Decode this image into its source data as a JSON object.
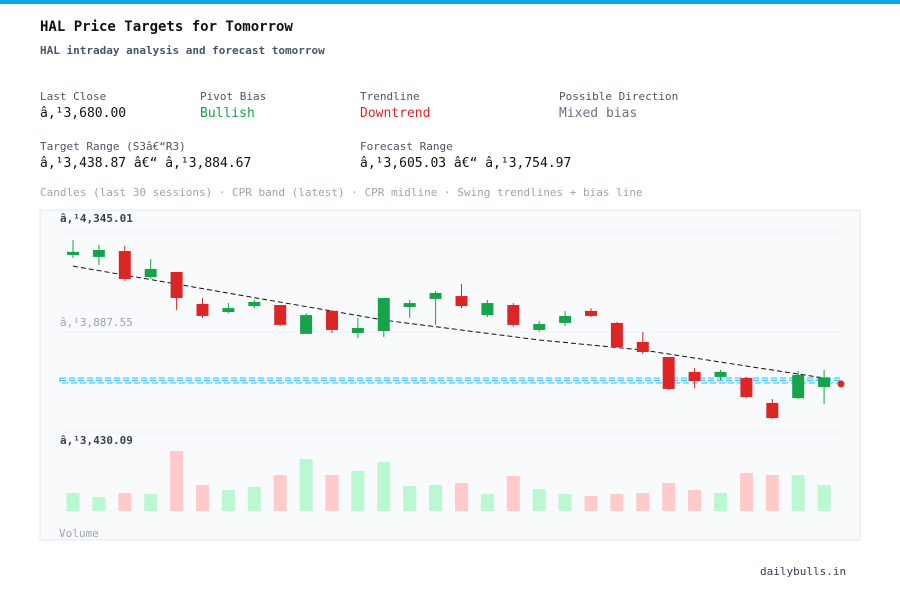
{
  "header": {
    "title": "HAL Price Targets for Tomorrow",
    "subtitle": "HAL intraday analysis and forecast tomorrow"
  },
  "stats": [
    {
      "label": "Last Close",
      "value": "â‚¹3,680.00"
    },
    {
      "label": "Pivot Bias",
      "value": "Bullish"
    },
    {
      "label": "Trendline",
      "value": "Downtrend"
    },
    {
      "label": "Possible Direction",
      "value": "Mixed bias"
    },
    {
      "label": "Target Range (S3â€“R3)",
      "value": "â‚¹3,438.87 â€“ â‚¹3,884.67"
    },
    {
      "label": "Forecast Range",
      "value": "â‚¹3,605.03 â€“ â‚¹3,754.97"
    }
  ],
  "caption": "Candles (last 30 sessions) · CPR band (latest) · CPR midline · Swing trendlines + bias line",
  "footer": "dailybulls.in",
  "chart_data": {
    "type": "candlestick",
    "ylim": [
      3430.09,
      4345.01
    ],
    "yticks": [
      {
        "value": 4345.01,
        "label": "â‚¹4,345.01"
      },
      {
        "value": 3887.55,
        "label": "â‚¹3,887.55"
      },
      {
        "value": 3430.09,
        "label": "â‚¹3,430.09"
      }
    ],
    "open": [
      4240,
      4231,
      4258,
      4139,
      4162,
      4016,
      3979,
      4006,
      4011,
      3879,
      3984,
      3883,
      3892,
      4002,
      4039,
      4052,
      3965,
      4011,
      3897,
      3929,
      3984,
      3929,
      3842,
      3773,
      3705,
      3682,
      3677,
      3563,
      3585,
      3636
    ],
    "high": [
      4308,
      4286,
      4281,
      4221,
      4162,
      4043,
      4020,
      4034,
      4011,
      3974,
      3988,
      3952,
      4043,
      4034,
      4075,
      4107,
      4034,
      4020,
      3938,
      3984,
      3997,
      3933,
      3888,
      3773,
      3723,
      3714,
      3682,
      3581,
      3709,
      3714
    ],
    "low": [
      4226,
      4194,
      4121,
      4130,
      3988,
      3952,
      3974,
      3997,
      3915,
      3879,
      3883,
      3860,
      3865,
      3952,
      3920,
      3997,
      3956,
      3911,
      3888,
      3915,
      3956,
      3814,
      3787,
      3622,
      3631,
      3668,
      3585,
      3490,
      3581,
      3558
    ],
    "close": [
      4254,
      4263,
      4130,
      4176,
      4043,
      3961,
      3997,
      4025,
      3920,
      3965,
      3897,
      3906,
      4043,
      4020,
      4066,
      4006,
      4020,
      3920,
      3924,
      3961,
      3961,
      3819,
      3796,
      3627,
      3663,
      3705,
      3590,
      3494,
      3691,
      3680
    ],
    "volume": [
      18,
      14,
      18,
      17,
      60,
      26,
      21,
      24,
      36,
      52,
      36,
      40,
      49,
      25,
      26,
      28,
      17,
      35,
      22,
      17,
      15,
      17,
      18,
      28,
      21,
      18,
      38,
      36,
      36,
      26
    ],
    "volume_label": "Volume",
    "up_color": "#16a34a",
    "down_color": "#dc2626",
    "up_volume_color": "#bbf7d0",
    "down_volume_color": "#fecaca",
    "cpr_band": [
      3654,
      3677
    ],
    "cpr_mid": 3666,
    "cpr_color": "#38bdf8",
    "trendline": {
      "index": [
        0,
        12,
        18,
        22,
        29
      ],
      "values": [
        4189,
        3942,
        3851,
        3805,
        3677
      ]
    },
    "bias_point": 3650
  }
}
